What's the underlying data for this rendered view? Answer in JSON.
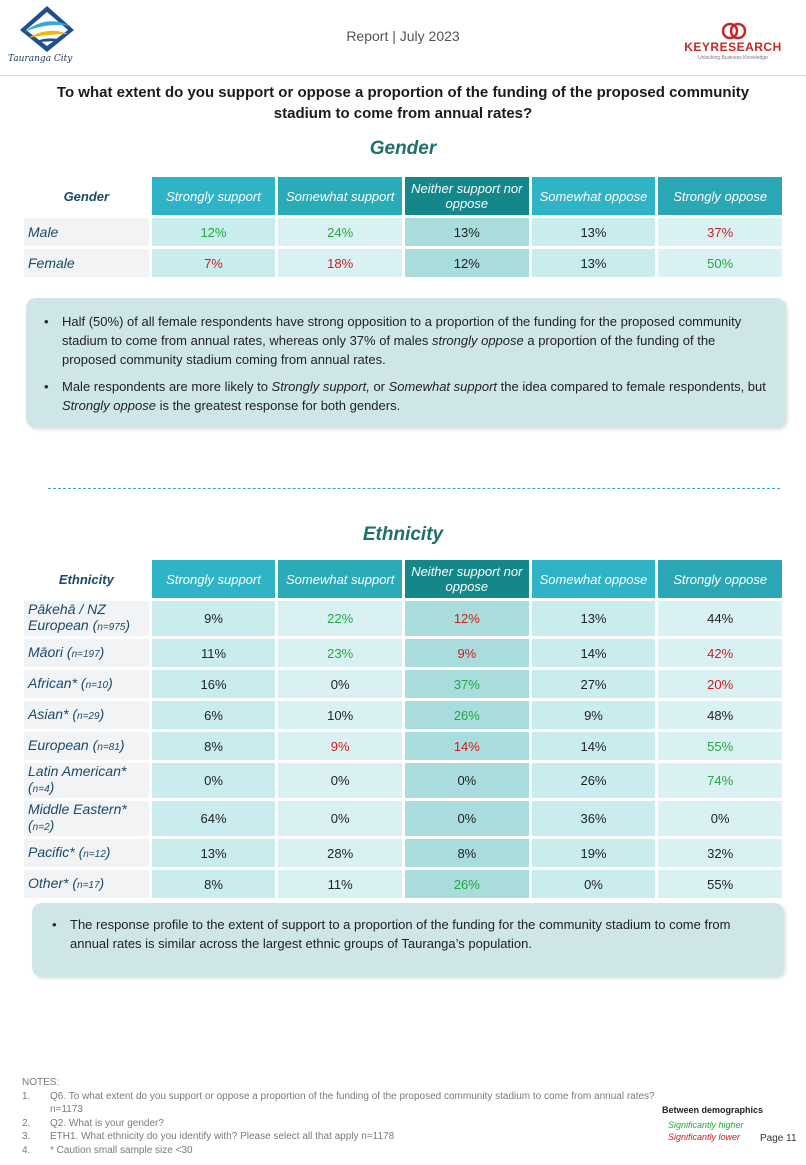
{
  "header": {
    "report_title": "Report | July 2023",
    "left_logo_text": "Tauranga City",
    "right_logo_text": "KEYRESEARCH",
    "right_logo_tagline": "Unlocking Business Knowledge"
  },
  "question": "To what extent do you support or oppose a proportion of the funding of the proposed community stadium to come from annual rates?",
  "columns": [
    "Strongly support",
    "Somewhat support",
    "Neither support nor oppose",
    "Somewhat oppose",
    "Strongly oppose"
  ],
  "gender": {
    "title": "Gender",
    "row_header": "Gender",
    "rows": [
      {
        "label": "Male",
        "n": "",
        "values": [
          "12%",
          "24%",
          "13%",
          "13%",
          "37%"
        ],
        "sig": [
          "g",
          "g",
          "",
          "",
          "r"
        ]
      },
      {
        "label": "Female",
        "n": "",
        "values": [
          "7%",
          "18%",
          "12%",
          "13%",
          "50%"
        ],
        "sig": [
          "r",
          "r",
          "",
          "",
          "g"
        ]
      }
    ],
    "notes": [
      "Half (50%) of all female respondents have strong opposition to a proportion of the funding for the proposed community stadium to come from annual rates, whereas only 37% of males strongly oppose a proportion of the funding of the proposed community stadium coming from annual rates.",
      "Male respondents are more likely to Strongly support, or Somewhat support the idea compared to female respondents, but Strongly oppose is the greatest response for both genders."
    ]
  },
  "ethnicity": {
    "title": "Ethnicity",
    "row_header": "Ethnicity",
    "rows": [
      {
        "label": "Pākehā / NZ European (",
        "n": "n=975",
        "close": ")",
        "values": [
          "9%",
          "22%",
          "12%",
          "13%",
          "44%"
        ],
        "sig": [
          "",
          "g",
          "r",
          "",
          ""
        ]
      },
      {
        "label": "Māori (",
        "n": "n=197",
        "close": ")",
        "values": [
          "11%",
          "23%",
          "9%",
          "14%",
          "42%"
        ],
        "sig": [
          "",
          "g",
          "r",
          "",
          "r"
        ]
      },
      {
        "label": "African* (",
        "n": "n=10",
        "close": ")",
        "values": [
          "16%",
          "0%",
          "37%",
          "27%",
          "20%"
        ],
        "sig": [
          "",
          "",
          "g",
          "",
          "r"
        ]
      },
      {
        "label": "Asian* (",
        "n": "n=29",
        "close": ")",
        "values": [
          "6%",
          "10%",
          "26%",
          "9%",
          "48%"
        ],
        "sig": [
          "",
          "",
          "g",
          "",
          ""
        ]
      },
      {
        "label": "European (",
        "n": "n=81",
        "close": ")",
        "values": [
          "8%",
          "9%",
          "14%",
          "14%",
          "55%"
        ],
        "sig": [
          "",
          "r",
          "r",
          "",
          "g"
        ]
      },
      {
        "label": "Latin American* (",
        "n": "n=4",
        "close": ")",
        "values": [
          "0%",
          "0%",
          "0%",
          "26%",
          "74%"
        ],
        "sig": [
          "",
          "",
          "",
          "",
          "g"
        ]
      },
      {
        "label": "Middle Eastern* (",
        "n": "n=2",
        "close": ")",
        "values": [
          "64%",
          "0%",
          "0%",
          "36%",
          "0%"
        ],
        "sig": [
          "",
          "",
          "",
          "",
          ""
        ]
      },
      {
        "label": "Pacific* (",
        "n": "n=12",
        "close": ")",
        "values": [
          "13%",
          "28%",
          "8%",
          "19%",
          "32%"
        ],
        "sig": [
          "",
          "",
          "",
          "",
          ""
        ]
      },
      {
        "label": "Other* (",
        "n": "n=17",
        "close": ")",
        "values": [
          "8%",
          "11%",
          "26%",
          "0%",
          "55%"
        ],
        "sig": [
          "",
          "",
          "g",
          "",
          ""
        ]
      }
    ],
    "notes": [
      "The response profile to the extent of support to a proportion of the funding for the community stadium to come from annual rates is similar across the largest ethnic groups of Tauranga’s population."
    ]
  },
  "footer": {
    "notes_title": "NOTES:",
    "notes": [
      {
        "num": "1.",
        "text": "Q6. To what extent do you support or oppose a proportion of the funding of the proposed community stadium to come from annual rates? n=1173"
      },
      {
        "num": "2.",
        "text": "Q2. What is your gender?"
      },
      {
        "num": "3.",
        "text": "ETH1. What ethnicity do you identify with? Please select all that apply n=1178"
      },
      {
        "num": "4.",
        "text": "* Caution small sample size <30"
      }
    ],
    "legend_title": "Between demographics",
    "legend_higher": "Significantly higher",
    "legend_lower": "Significantly lower",
    "page": "Page 11"
  },
  "colors": {
    "accent_teal": "#1f6f6c",
    "significantly_higher": "#1faa3c",
    "significantly_lower": "#d21b1b"
  }
}
